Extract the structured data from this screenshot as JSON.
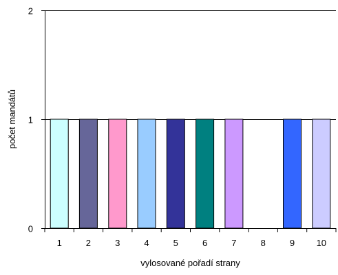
{
  "chart_data": {
    "type": "bar",
    "title": "",
    "xlabel": "vylosované pořadí strany",
    "ylabel": "počet mandátů",
    "categories": [
      "1",
      "2",
      "3",
      "4",
      "5",
      "6",
      "7",
      "8",
      "9",
      "10"
    ],
    "values": [
      1,
      1,
      1,
      1,
      1,
      1,
      1,
      0,
      1,
      1
    ],
    "colors": [
      "#ccffff",
      "#666699",
      "#ff99cc",
      "#99ccff",
      "#333399",
      "#008080",
      "#cc99ff",
      "#ffffff",
      "#3366ff",
      "#ccccff"
    ],
    "ylim": [
      0,
      2
    ],
    "yticks": [
      0,
      1,
      2
    ],
    "ytick_labels": [
      "0",
      "1",
      "2"
    ],
    "grid": true,
    "legend": "none"
  }
}
